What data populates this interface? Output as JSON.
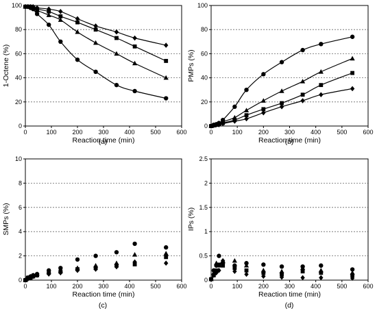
{
  "chart_data": [
    {
      "type": "scatter",
      "panel_label": "(a)",
      "xlabel": "Reaction time (min)",
      "ylabel": "1-Octene (%)",
      "xlim": [
        0,
        600
      ],
      "ylim": [
        0,
        100
      ],
      "xticks": [
        0,
        100,
        200,
        300,
        400,
        500,
        600
      ],
      "yticks": [
        0,
        20,
        40,
        60,
        80,
        100
      ],
      "grid": "horizontal-dashed",
      "fit_curves": true,
      "series": [
        {
          "marker": "circle",
          "x": [
            0,
            10,
            20,
            30,
            45,
            90,
            135,
            200,
            270,
            350,
            420,
            540
          ],
          "y": [
            99,
            99,
            98,
            97,
            93,
            84,
            70,
            55,
            45,
            34,
            29,
            23
          ]
        },
        {
          "marker": "triangle",
          "x": [
            0,
            10,
            20,
            30,
            45,
            90,
            135,
            200,
            270,
            350,
            420,
            540
          ],
          "y": [
            99,
            99,
            99,
            98,
            96,
            92,
            88,
            78,
            69,
            60,
            52,
            40
          ]
        },
        {
          "marker": "square",
          "x": [
            0,
            10,
            20,
            30,
            45,
            90,
            135,
            200,
            270,
            350,
            420,
            540
          ],
          "y": [
            99,
            99,
            99,
            98,
            97,
            95,
            91,
            86,
            80,
            73,
            66,
            54
          ]
        },
        {
          "marker": "diamond",
          "x": [
            0,
            10,
            20,
            30,
            45,
            90,
            135,
            200,
            270,
            350,
            420,
            540
          ],
          "y": [
            99,
            99,
            99,
            99,
            98,
            97,
            95,
            89,
            83,
            78,
            73,
            67
          ]
        }
      ]
    },
    {
      "type": "scatter",
      "panel_label": "(b)",
      "xlabel": "Reaction time (min)",
      "ylabel": "PMPs (%)",
      "xlim": [
        0,
        600
      ],
      "ylim": [
        0,
        100
      ],
      "xticks": [
        0,
        100,
        200,
        300,
        400,
        500,
        600
      ],
      "yticks": [
        0,
        20,
        40,
        60,
        80,
        100
      ],
      "grid": "horizontal-dashed",
      "fit_curves": true,
      "series": [
        {
          "marker": "circle",
          "x": [
            0,
            10,
            20,
            30,
            45,
            90,
            135,
            200,
            270,
            350,
            420,
            540
          ],
          "y": [
            0,
            1,
            1.5,
            2.5,
            5,
            16,
            30,
            43,
            53,
            63,
            68,
            74
          ]
        },
        {
          "marker": "triangle",
          "x": [
            0,
            10,
            20,
            30,
            45,
            90,
            135,
            200,
            270,
            350,
            420,
            540
          ],
          "y": [
            0,
            0.5,
            1,
            2,
            3.5,
            7,
            13,
            21,
            29,
            37,
            45,
            56
          ]
        },
        {
          "marker": "square",
          "x": [
            0,
            10,
            20,
            30,
            45,
            90,
            135,
            200,
            270,
            350,
            420,
            540
          ],
          "y": [
            0,
            0.5,
            1,
            1.5,
            2.5,
            5,
            9,
            14,
            19,
            26,
            34,
            44
          ]
        },
        {
          "marker": "diamond",
          "x": [
            0,
            10,
            20,
            30,
            45,
            90,
            135,
            200,
            270,
            350,
            420,
            540
          ],
          "y": [
            0,
            0.5,
            1,
            1,
            2,
            4,
            6,
            11,
            16,
            21,
            26,
            31
          ]
        }
      ]
    },
    {
      "type": "scatter",
      "panel_label": "(c)",
      "xlabel": "Reaction time (min)",
      "ylabel": "SMPs (%)",
      "xlim": [
        0,
        600
      ],
      "ylim": [
        0,
        10
      ],
      "xticks": [
        0,
        100,
        200,
        300,
        400,
        500,
        600
      ],
      "yticks": [
        0,
        2,
        4,
        6,
        8,
        10
      ],
      "grid": "horizontal-dashed",
      "fit_curves": false,
      "series": [
        {
          "marker": "circle",
          "x": [
            0,
            10,
            20,
            30,
            45,
            90,
            135,
            200,
            270,
            350,
            420,
            540
          ],
          "y": [
            0,
            0.2,
            0.3,
            0.4,
            0.5,
            0.8,
            1.0,
            1.7,
            2.0,
            2.3,
            3.0,
            2.7
          ]
        },
        {
          "marker": "triangle",
          "x": [
            0,
            10,
            20,
            30,
            45,
            90,
            135,
            200,
            270,
            350,
            420,
            540
          ],
          "y": [
            0,
            0.2,
            0.3,
            0.4,
            0.5,
            0.7,
            0.8,
            1.0,
            1.2,
            1.4,
            2.1,
            2.2
          ]
        },
        {
          "marker": "square",
          "x": [
            0,
            10,
            20,
            30,
            45,
            90,
            135,
            200,
            270,
            350,
            420,
            540
          ],
          "y": [
            0,
            0.2,
            0.2,
            0.3,
            0.4,
            0.6,
            0.7,
            0.9,
            1.0,
            1.2,
            1.3,
            1.9
          ]
        },
        {
          "marker": "diamond",
          "x": [
            0,
            10,
            20,
            30,
            45,
            90,
            135,
            200,
            270,
            350,
            420,
            540
          ],
          "y": [
            0,
            0.1,
            0.2,
            0.3,
            0.4,
            0.5,
            0.6,
            0.8,
            0.9,
            1.1,
            1.5,
            1.4
          ]
        }
      ]
    },
    {
      "type": "scatter",
      "panel_label": "(d)",
      "xlabel": "Reaction time (min)",
      "ylabel": "IPs (%)",
      "xlim": [
        0,
        600
      ],
      "ylim": [
        0,
        2.5
      ],
      "xticks": [
        0,
        100,
        200,
        300,
        400,
        500,
        600
      ],
      "yticks": [
        0,
        0.5,
        1,
        1.5,
        2,
        2.5
      ],
      "ytick_labels": [
        "0",
        "0.5",
        "1",
        "1.5",
        "2",
        "2.5"
      ],
      "grid": "horizontal-dashed",
      "fit_curves": false,
      "series": [
        {
          "marker": "circle",
          "x": [
            0,
            10,
            20,
            30,
            45,
            90,
            135,
            200,
            270,
            350,
            420,
            540
          ],
          "y": [
            0.02,
            0.2,
            0.3,
            0.5,
            0.35,
            0.3,
            0.35,
            0.32,
            0.28,
            0.28,
            0.3,
            0.22
          ]
        },
        {
          "marker": "triangle",
          "x": [
            0,
            10,
            20,
            30,
            45,
            90,
            135,
            200,
            270,
            350,
            420,
            540
          ],
          "y": [
            0.02,
            0.15,
            0.35,
            0.3,
            0.4,
            0.4,
            0.3,
            0.2,
            0.18,
            0.25,
            0.2,
            0.15
          ]
        },
        {
          "marker": "square",
          "x": [
            0,
            10,
            20,
            30,
            45,
            90,
            135,
            200,
            270,
            350,
            420,
            540
          ],
          "y": [
            0.02,
            0.1,
            0.2,
            0.32,
            0.3,
            0.25,
            0.2,
            0.15,
            0.12,
            0.18,
            0.15,
            0.1
          ]
        },
        {
          "marker": "diamond",
          "x": [
            0,
            10,
            20,
            30,
            45,
            90,
            135,
            200,
            270,
            350,
            420,
            540
          ],
          "y": [
            0.02,
            0.1,
            0.15,
            0.2,
            0.4,
            0.18,
            0.12,
            0.08,
            0.06,
            0.05,
            0.05,
            0.04
          ]
        }
      ]
    }
  ]
}
